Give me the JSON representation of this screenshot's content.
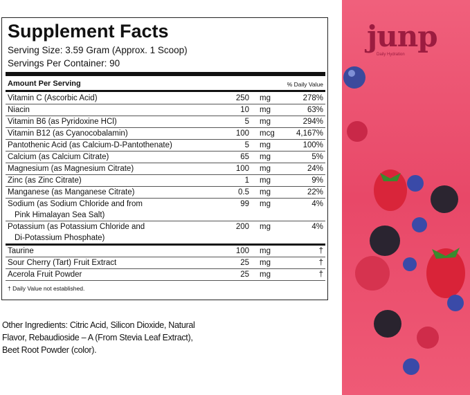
{
  "label": {
    "title": "Supplement Facts",
    "serving_size": "Serving Size: 3.59 Gram (Approx. 1 Scoop)",
    "servings_per_container": "Servings Per Container: 90",
    "amount_header": "Amount Per Serving",
    "dv_header": "% Daily Value",
    "rows": [
      {
        "name": [
          "Vitamin C (Ascorbic Acid)"
        ],
        "amount": "250",
        "unit": "mg",
        "dv": "278%"
      },
      {
        "name": [
          "Niacin"
        ],
        "amount": "10",
        "unit": "mg",
        "dv": "63%"
      },
      {
        "name": [
          "Vitamin B6 (as Pyridoxine HCl)"
        ],
        "amount": "5",
        "unit": "mg",
        "dv": "294%"
      },
      {
        "name": [
          "Vitamin B12 (as Cyanocobalamin)"
        ],
        "amount": "100",
        "unit": "mcg",
        "dv": "4,167%"
      },
      {
        "name": [
          "Pantothenic Acid (as Calcium-D-Pantothenate)"
        ],
        "amount": "5",
        "unit": "mg",
        "dv": "100%"
      },
      {
        "name": [
          "Calcium (as Calcium Citrate)"
        ],
        "amount": "65",
        "unit": "mg",
        "dv": "5%"
      },
      {
        "name": [
          "Magnesium (as Magnesium Citrate)"
        ],
        "amount": "100",
        "unit": "mg",
        "dv": "24%"
      },
      {
        "name": [
          "Zinc (as Zinc Citrate)"
        ],
        "amount": "1",
        "unit": "mg",
        "dv": "9%"
      },
      {
        "name": [
          "Manganese (as Manganese Citrate)"
        ],
        "amount": "0.5",
        "unit": "mg",
        "dv": "22%"
      },
      {
        "name": [
          "Sodium (as Sodium Chloride and from",
          "Pink Himalayan Sea Salt)"
        ],
        "amount": "99",
        "unit": "mg",
        "dv": "4%"
      },
      {
        "name": [
          "Potassium (as Potassium Chloride and",
          "Di-Potassium Phosphate)"
        ],
        "amount": "200",
        "unit": "mg",
        "dv": "4%"
      }
    ],
    "other_rows": [
      {
        "name": [
          "Taurine"
        ],
        "amount": "100",
        "unit": "mg",
        "dv": "†"
      },
      {
        "name": [
          "Sour Cherry (Tart) Fruit Extract"
        ],
        "amount": "25",
        "unit": "mg",
        "dv": "†"
      },
      {
        "name": [
          "Acerola Fruit Powder"
        ],
        "amount": "25",
        "unit": "mg",
        "dv": "†"
      }
    ],
    "footnote": "† Daily Value not established."
  },
  "other_ingredients": [
    "Other Ingredients: Citric Acid, Silicon Dioxide, Natural",
    "Flavor, Rebaudioside – A (From Stevia Leaf Extract),",
    "Beet Root Powder (color)."
  ],
  "brand": {
    "logo": "junp",
    "tagline": "Daily Hydration"
  }
}
